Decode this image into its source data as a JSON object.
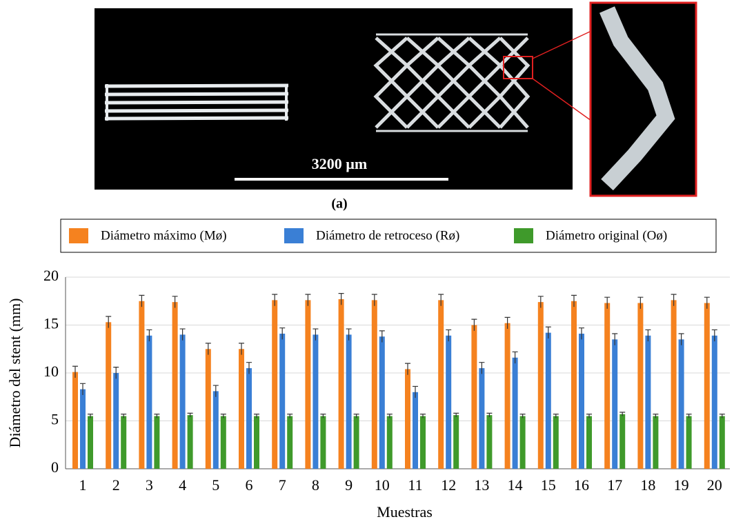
{
  "figure": {
    "scale_label": "3200 µm",
    "caption": "(a)"
  },
  "chart_data": {
    "type": "bar",
    "x_label": "Muestras",
    "y_label": "Diámetro del stent (mm)",
    "categories": [
      "1",
      "2",
      "3",
      "4",
      "5",
      "6",
      "7",
      "8",
      "9",
      "10",
      "11",
      "12",
      "13",
      "14",
      "15",
      "16",
      "17",
      "18",
      "19",
      "20"
    ],
    "series": [
      {
        "name": "Diámetro máximo (Mø)",
        "color": "#f5821f",
        "values": [
          10.1,
          15.3,
          17.5,
          17.4,
          12.5,
          12.5,
          17.6,
          17.6,
          17.7,
          17.6,
          10.4,
          17.6,
          15.0,
          15.2,
          17.4,
          17.5,
          17.3,
          17.3,
          17.6,
          17.3
        ],
        "errors": [
          0.6,
          0.6,
          0.6,
          0.6,
          0.6,
          0.6,
          0.6,
          0.6,
          0.6,
          0.6,
          0.6,
          0.6,
          0.6,
          0.6,
          0.6,
          0.6,
          0.6,
          0.6,
          0.6,
          0.6
        ]
      },
      {
        "name": "Diámetro de retroceso (Rø)",
        "color": "#3a7fd5",
        "values": [
          8.3,
          10.0,
          13.9,
          14.0,
          8.1,
          10.5,
          14.1,
          14.0,
          14.0,
          13.8,
          8.0,
          13.9,
          10.5,
          11.6,
          14.2,
          14.1,
          13.5,
          13.9,
          13.5,
          13.9
        ],
        "errors": [
          0.6,
          0.6,
          0.6,
          0.6,
          0.6,
          0.6,
          0.6,
          0.6,
          0.6,
          0.6,
          0.6,
          0.6,
          0.6,
          0.6,
          0.6,
          0.6,
          0.6,
          0.6,
          0.6,
          0.6
        ]
      },
      {
        "name": "Diámetro original (Oø)",
        "color": "#3f9a2b",
        "values": [
          5.5,
          5.5,
          5.5,
          5.6,
          5.5,
          5.5,
          5.5,
          5.5,
          5.5,
          5.5,
          5.5,
          5.6,
          5.6,
          5.5,
          5.5,
          5.5,
          5.7,
          5.5,
          5.5,
          5.5
        ],
        "errors": [
          0.2,
          0.2,
          0.2,
          0.2,
          0.2,
          0.2,
          0.2,
          0.2,
          0.2,
          0.2,
          0.2,
          0.2,
          0.2,
          0.2,
          0.2,
          0.2,
          0.2,
          0.2,
          0.2,
          0.2
        ]
      }
    ],
    "ylim": [
      0,
      20
    ],
    "yticks": [
      0,
      5,
      10,
      15,
      20
    ],
    "grid": true,
    "legend": "top"
  }
}
